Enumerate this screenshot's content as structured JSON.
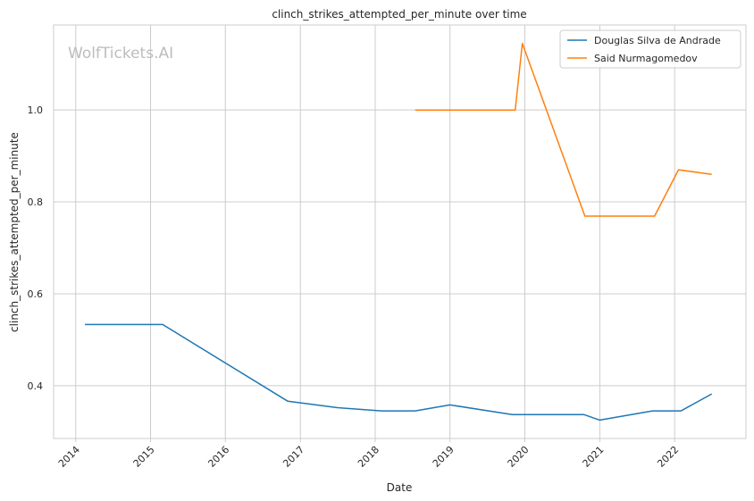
{
  "chart_data": {
    "type": "line",
    "title": "clinch_strikes_attempted_per_minute over time",
    "xlabel": "Date",
    "ylabel": "clinch_strikes_attempted_per_minute",
    "watermark": "WolfTickets.AI",
    "xlim": [
      "2013-09-15",
      "2022-12-15"
    ],
    "ylim": [
      0.285,
      1.185
    ],
    "x_ticks": [
      "2014",
      "2015",
      "2016",
      "2017",
      "2018",
      "2019",
      "2020",
      "2021",
      "2022"
    ],
    "y_ticks": [
      0.4,
      0.6,
      0.8,
      1.0
    ],
    "y_tick_labels": [
      "0.4",
      "0.6",
      "0.8",
      "1.0"
    ],
    "grid": true,
    "legend_position": "top-right",
    "series": [
      {
        "name": "Douglas Silva de Andrade",
        "color": "#1f77b4",
        "points": [
          [
            "2014-02-15",
            0.533
          ],
          [
            "2015-03-01",
            0.533
          ],
          [
            "2016-11-01",
            0.366
          ],
          [
            "2017-07-01",
            0.352
          ],
          [
            "2018-02-01",
            0.345
          ],
          [
            "2018-07-15",
            0.345
          ],
          [
            "2019-01-01",
            0.358
          ],
          [
            "2019-11-01",
            0.337
          ],
          [
            "2020-10-15",
            0.337
          ],
          [
            "2021-01-01",
            0.325
          ],
          [
            "2021-09-15",
            0.345
          ],
          [
            "2022-02-01",
            0.345
          ],
          [
            "2022-07-01",
            0.382
          ]
        ]
      },
      {
        "name": "Said Nurmagomedov",
        "color": "#ff7f0e",
        "points": [
          [
            "2018-07-15",
            1.0
          ],
          [
            "2019-11-15",
            1.0
          ],
          [
            "2019-12-20",
            1.145
          ],
          [
            "2020-10-20",
            0.769
          ],
          [
            "2021-09-25",
            0.769
          ],
          [
            "2022-01-20",
            0.87
          ],
          [
            "2022-07-01",
            0.86
          ]
        ]
      }
    ]
  }
}
